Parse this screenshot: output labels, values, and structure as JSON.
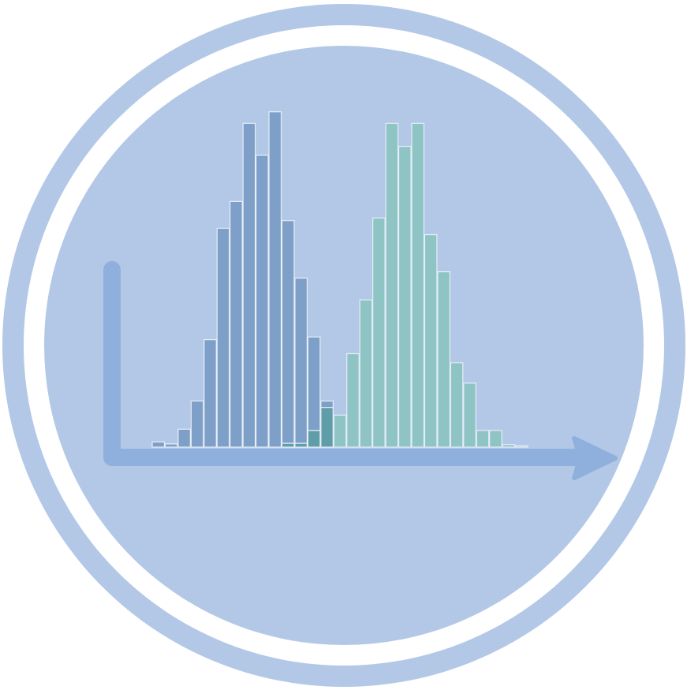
{
  "icon": {
    "name": "histogram-distribution-icon",
    "colors": {
      "ring": "#b3c8e7",
      "gap": "#ffffff",
      "disc": "#b3c8e7",
      "axis": "#8fb0dd",
      "series_a": "#7d9fc8",
      "series_b": "#8ec4c4",
      "overlap": "#5f9ea8",
      "bar_edge": "#e6eef7"
    }
  },
  "chart_data": {
    "type": "bar",
    "xlabel": "",
    "ylabel": "",
    "grid": false,
    "ylim": [
      0,
      26
    ],
    "series": [
      {
        "values": [
          0.4,
          0.25,
          1.4,
          3.6,
          8.4,
          17.1,
          19.2,
          25.3,
          22.8,
          26.2,
          17.7,
          13.2,
          8.6,
          3.6,
          0,
          0,
          0,
          0,
          0,
          0,
          0,
          0,
          0,
          0,
          0,
          0,
          0,
          0,
          0,
          0
        ]
      },
      {
        "values": [
          0,
          0,
          0,
          0,
          0,
          0,
          0,
          0,
          0,
          0,
          0.3,
          0.3,
          1.3,
          3.1,
          2.5,
          7.3,
          11.5,
          17.9,
          25.3,
          23.5,
          25.3,
          16.6,
          13.7,
          6.6,
          5.0,
          1.3,
          1.3,
          0.2,
          0.1,
          0
        ]
      }
    ]
  }
}
